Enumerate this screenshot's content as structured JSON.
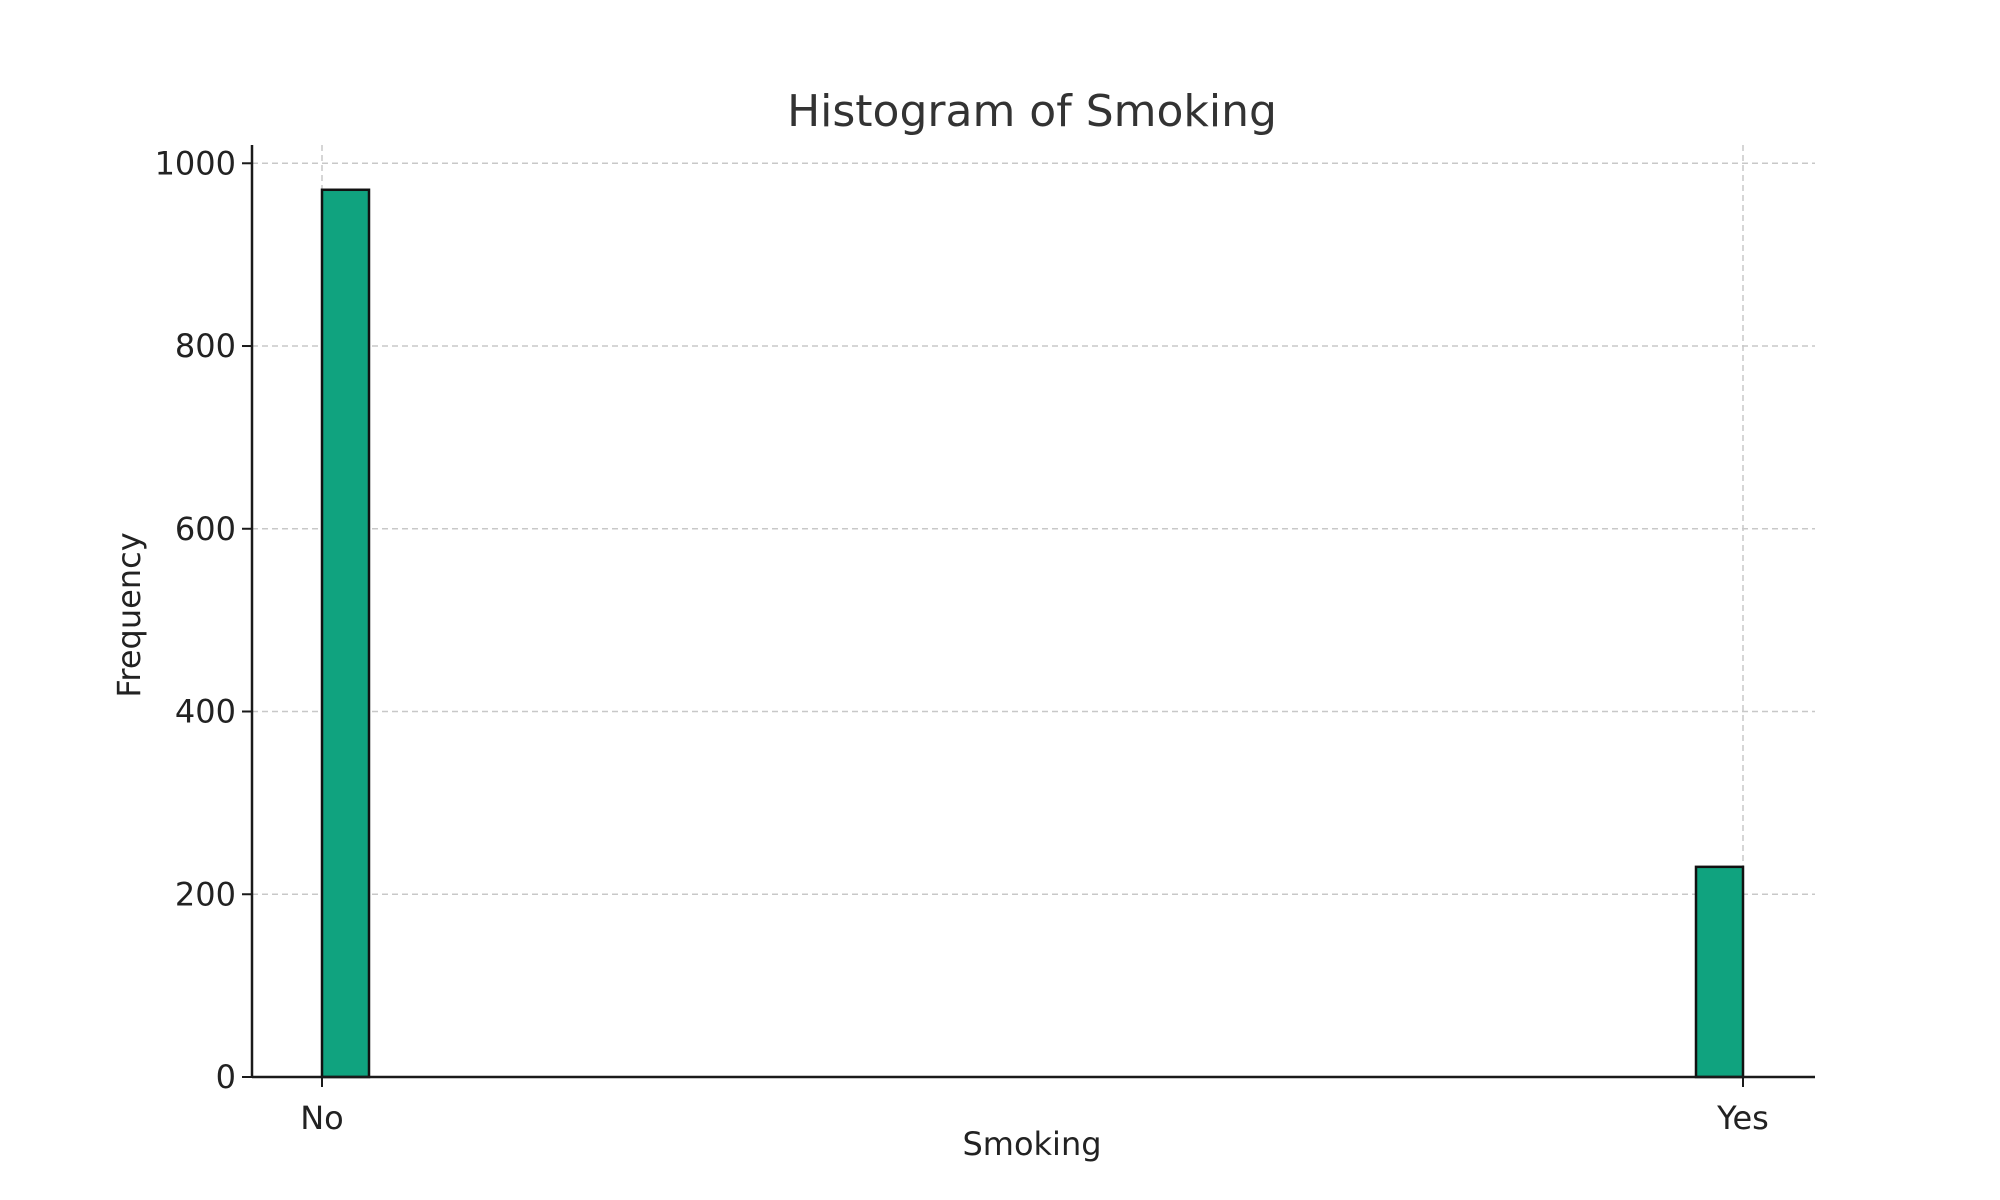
{
  "chart_data": {
    "type": "bar",
    "title": "Histogram of Smoking",
    "xlabel": "Smoking",
    "ylabel": "Frequency",
    "categories": [
      "No",
      "Yes"
    ],
    "values": [
      971,
      230
    ],
    "ylim": [
      0,
      1020
    ],
    "yticks": [
      0,
      200,
      400,
      600,
      800,
      1000
    ],
    "grid": true,
    "bar_color": "#10a37f",
    "bar_edge_color": "#111111"
  }
}
